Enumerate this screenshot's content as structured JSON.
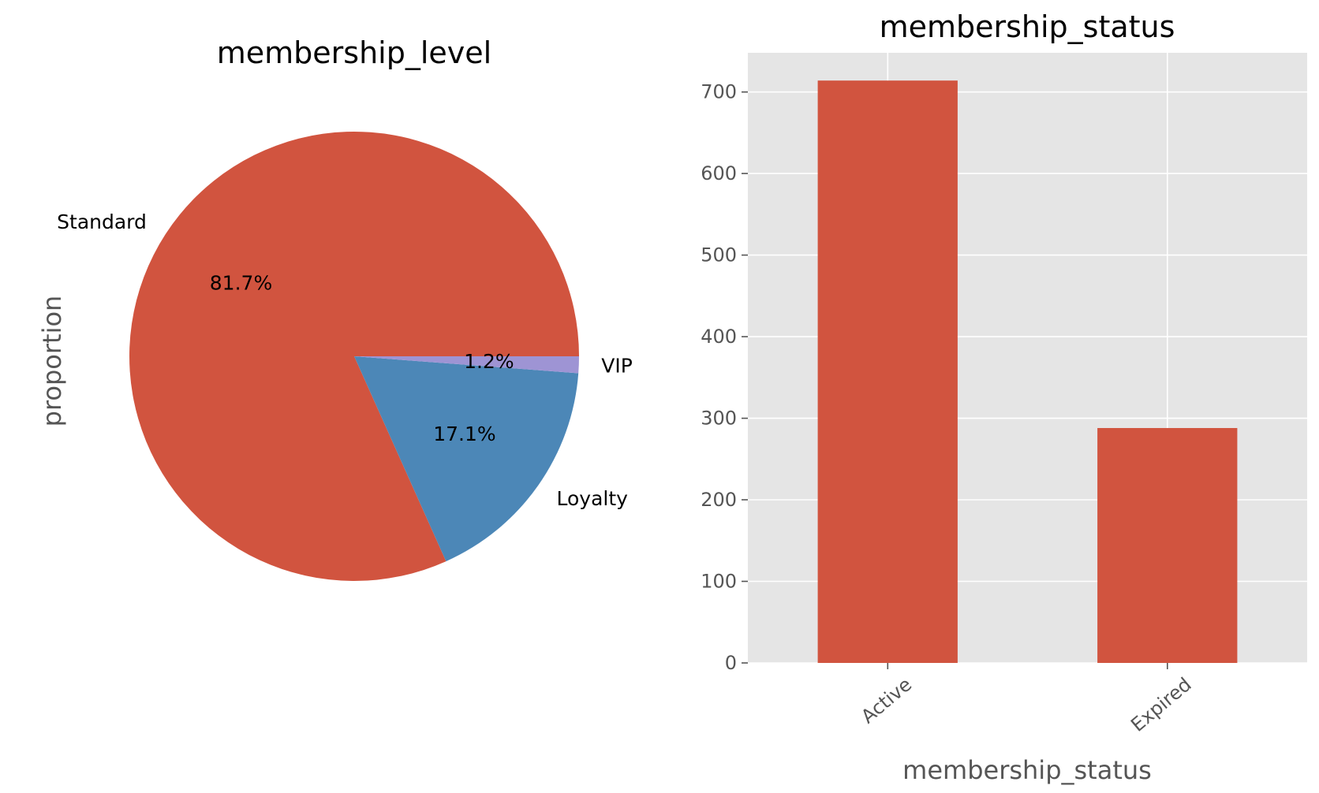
{
  "chart_data": [
    {
      "type": "pie",
      "title": "membership_level",
      "ylabel": "proportion",
      "slices": [
        {
          "label": "Standard",
          "value": 81.7,
          "pct_label": "81.7%",
          "color": "#d1543f"
        },
        {
          "label": "Loyalty",
          "value": 17.1,
          "pct_label": "17.1%",
          "color": "#4c87b7"
        },
        {
          "label": "VIP",
          "value": 1.2,
          "pct_label": "1.2%",
          "color": "#9e94d4"
        }
      ]
    },
    {
      "type": "bar",
      "title": "membership_status",
      "xlabel": "membership_status",
      "categories": [
        "Active",
        "Expired"
      ],
      "values": [
        714,
        288
      ],
      "ylim": [
        0,
        748
      ],
      "yticks": [
        0,
        100,
        200,
        300,
        400,
        500,
        600,
        700
      ],
      "bar_color": "#d1543f",
      "background": "#e5e5e5",
      "grid": true
    }
  ]
}
